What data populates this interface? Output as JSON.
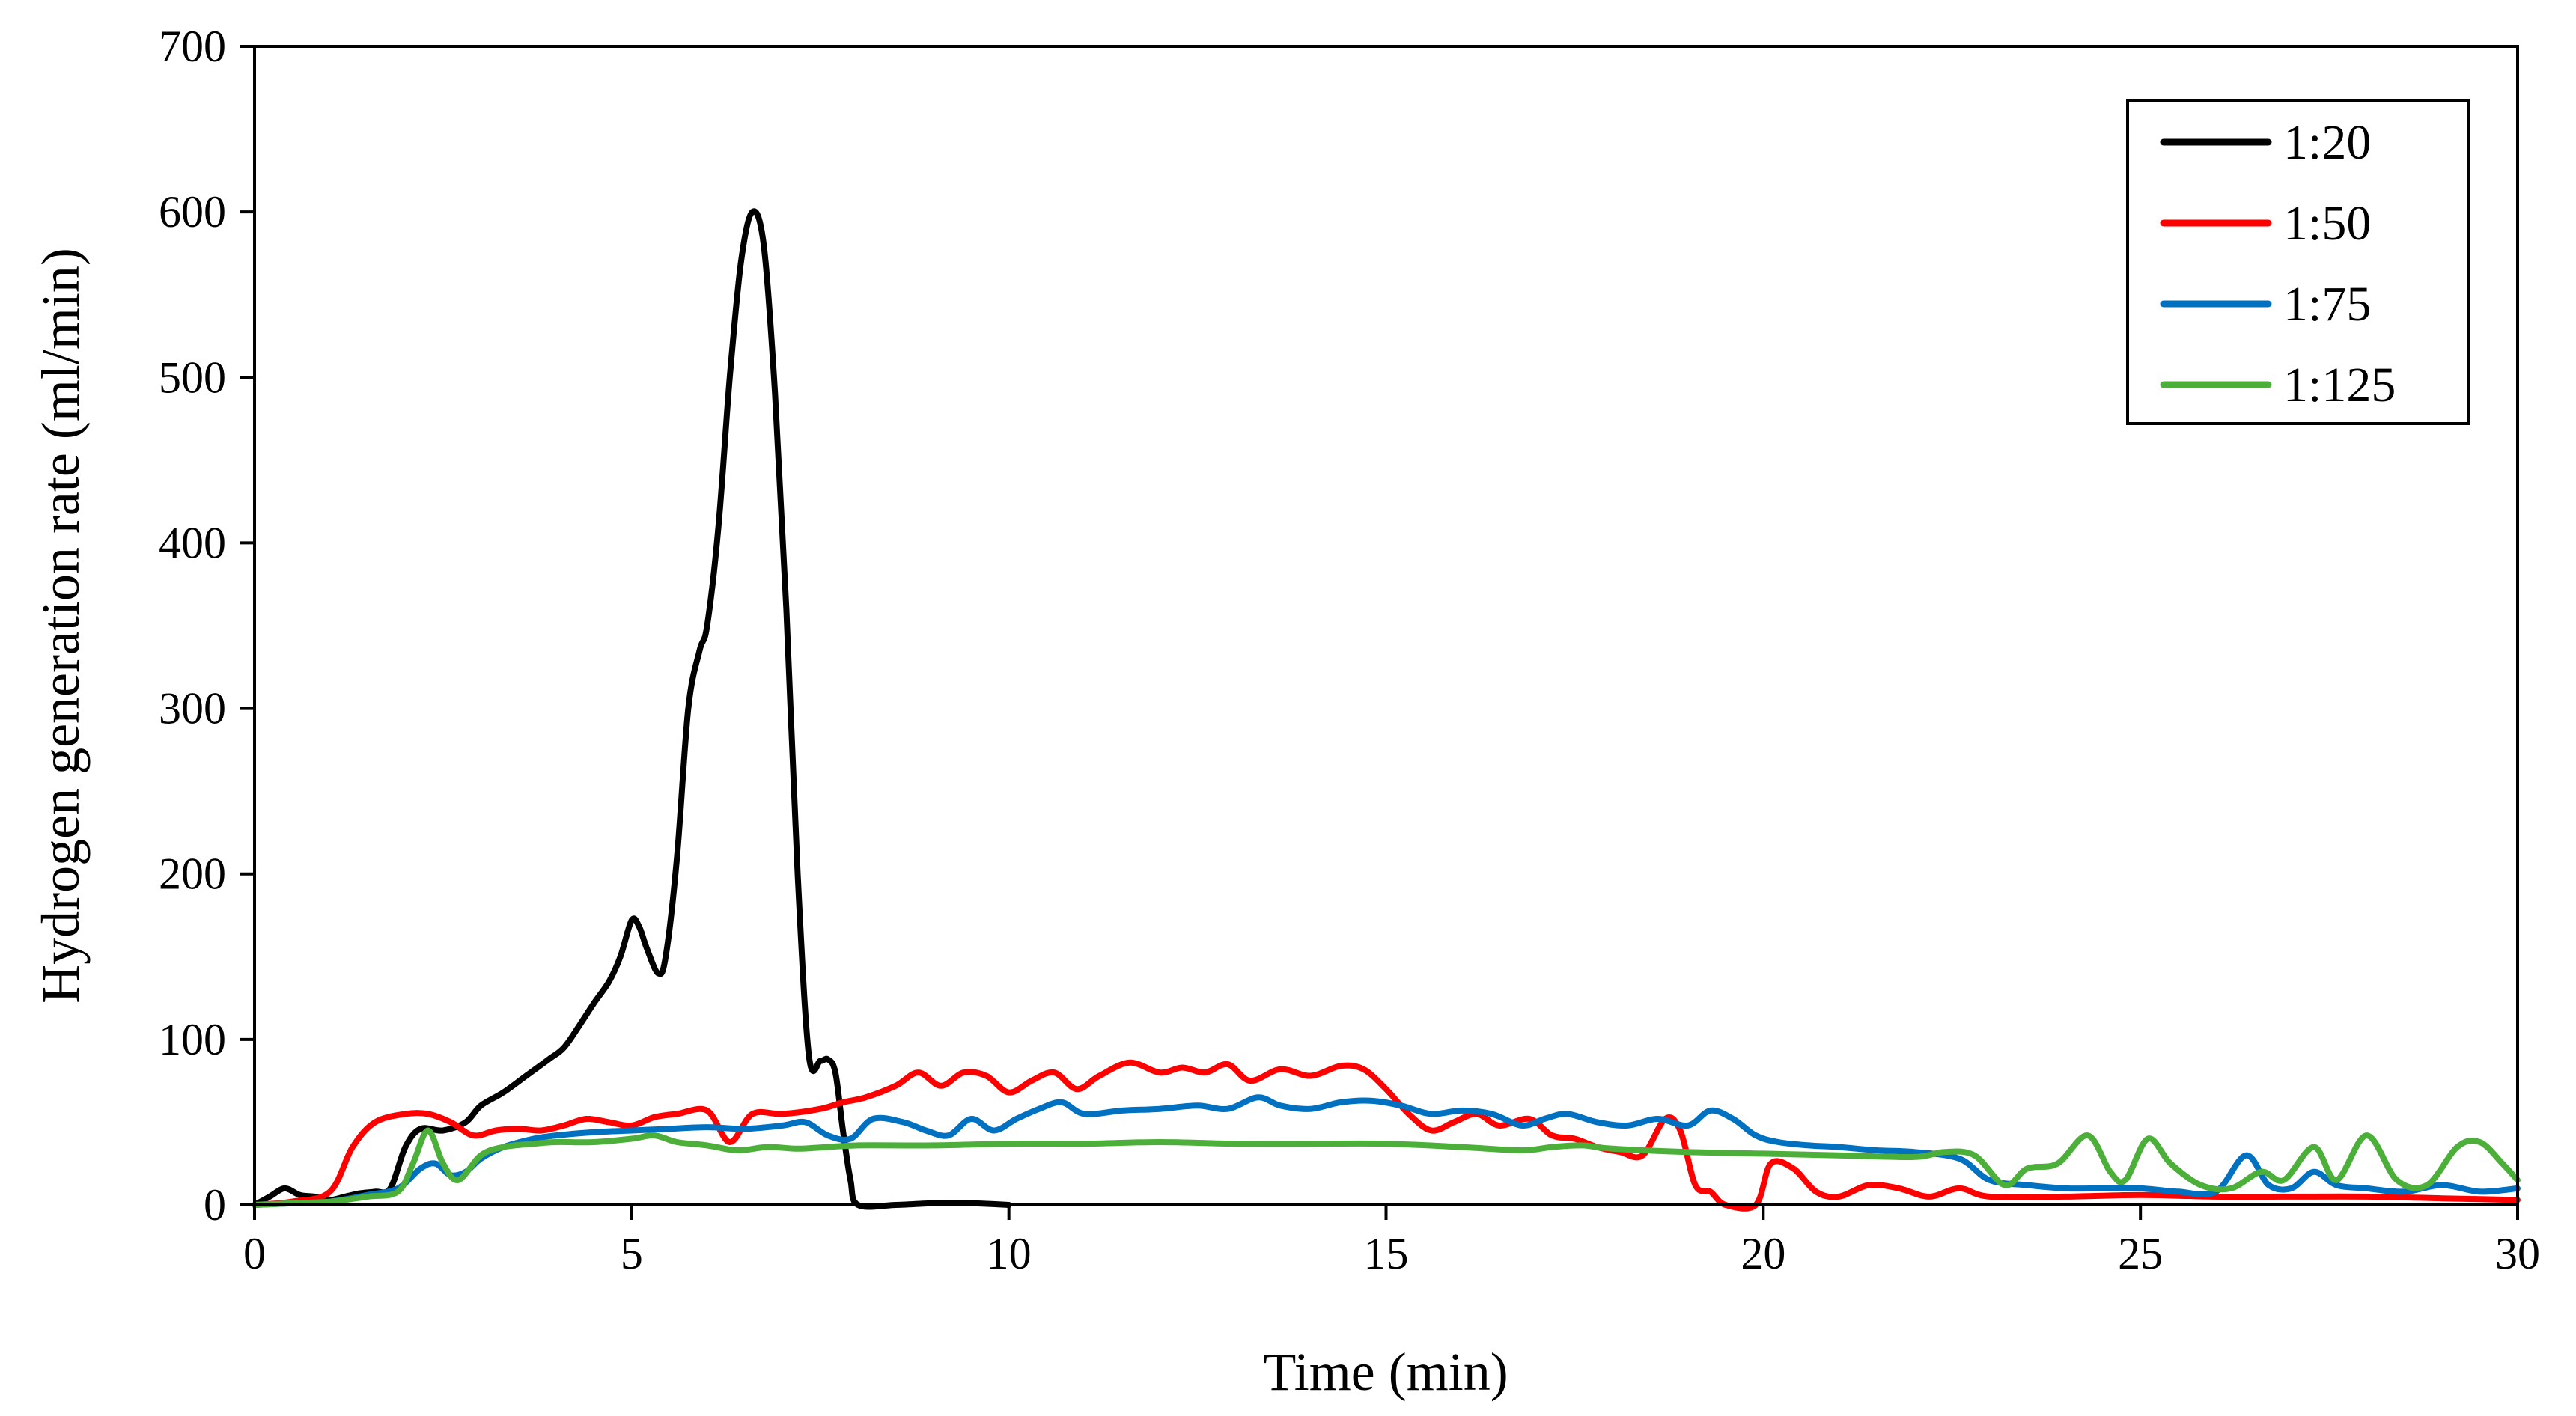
{
  "chart_data": {
    "type": "line",
    "title": "",
    "xlabel": "Time (min)",
    "ylabel": "Hydrogen generation rate (ml/min)",
    "xlim": [
      0,
      30
    ],
    "ylim": [
      0,
      700
    ],
    "xticks": [
      0,
      5,
      10,
      15,
      20,
      25,
      30
    ],
    "yticks": [
      0,
      100,
      200,
      300,
      400,
      500,
      600,
      700
    ],
    "grid": false,
    "legend_position": "top-right",
    "series": [
      {
        "name": "1:20",
        "color": "#000000",
        "points": [
          [
            0,
            0
          ],
          [
            0.2,
            5
          ],
          [
            0.4,
            10
          ],
          [
            0.6,
            6
          ],
          [
            0.8,
            5
          ],
          [
            1.0,
            3
          ],
          [
            1.2,
            5
          ],
          [
            1.4,
            7
          ],
          [
            1.6,
            8
          ],
          [
            1.8,
            10
          ],
          [
            2.0,
            35
          ],
          [
            2.2,
            46
          ],
          [
            2.5,
            45
          ],
          [
            2.8,
            50
          ],
          [
            3.0,
            60
          ],
          [
            3.3,
            68
          ],
          [
            3.6,
            78
          ],
          [
            3.9,
            88
          ],
          [
            4.1,
            95
          ],
          [
            4.3,
            108
          ],
          [
            4.5,
            122
          ],
          [
            4.7,
            135
          ],
          [
            4.85,
            150
          ],
          [
            5.0,
            172
          ],
          [
            5.1,
            168
          ],
          [
            5.2,
            155
          ],
          [
            5.35,
            140
          ],
          [
            5.45,
            150
          ],
          [
            5.6,
            210
          ],
          [
            5.75,
            300
          ],
          [
            5.9,
            335
          ],
          [
            6.0,
            350
          ],
          [
            6.15,
            410
          ],
          [
            6.3,
            500
          ],
          [
            6.45,
            570
          ],
          [
            6.6,
            600
          ],
          [
            6.75,
            580
          ],
          [
            6.9,
            490
          ],
          [
            7.05,
            360
          ],
          [
            7.2,
            200
          ],
          [
            7.35,
            90
          ],
          [
            7.5,
            87
          ],
          [
            7.6,
            88
          ],
          [
            7.7,
            80
          ],
          [
            7.8,
            45
          ],
          [
            7.9,
            15
          ],
          [
            8.0,
            0
          ],
          [
            8.5,
            0
          ],
          [
            9.0,
            1
          ],
          [
            9.5,
            1
          ],
          [
            10.0,
            0
          ]
        ]
      },
      {
        "name": "1:50",
        "color": "#ff0000",
        "points": [
          [
            0,
            0
          ],
          [
            0.5,
            2
          ],
          [
            1.0,
            8
          ],
          [
            1.3,
            35
          ],
          [
            1.6,
            50
          ],
          [
            2.0,
            55
          ],
          [
            2.3,
            55
          ],
          [
            2.6,
            50
          ],
          [
            2.9,
            42
          ],
          [
            3.2,
            45
          ],
          [
            3.5,
            46
          ],
          [
            3.8,
            45
          ],
          [
            4.1,
            48
          ],
          [
            4.4,
            52
          ],
          [
            4.7,
            50
          ],
          [
            5.0,
            48
          ],
          [
            5.3,
            53
          ],
          [
            5.6,
            55
          ],
          [
            6.0,
            57
          ],
          [
            6.3,
            38
          ],
          [
            6.6,
            55
          ],
          [
            7.0,
            55
          ],
          [
            7.5,
            58
          ],
          [
            7.8,
            62
          ],
          [
            8.1,
            65
          ],
          [
            8.5,
            72
          ],
          [
            8.8,
            80
          ],
          [
            9.1,
            72
          ],
          [
            9.4,
            80
          ],
          [
            9.7,
            78
          ],
          [
            10.0,
            68
          ],
          [
            10.3,
            75
          ],
          [
            10.6,
            80
          ],
          [
            10.9,
            70
          ],
          [
            11.2,
            78
          ],
          [
            11.6,
            86
          ],
          [
            12.0,
            80
          ],
          [
            12.3,
            83
          ],
          [
            12.6,
            80
          ],
          [
            12.9,
            85
          ],
          [
            13.2,
            75
          ],
          [
            13.6,
            82
          ],
          [
            14.0,
            78
          ],
          [
            14.4,
            84
          ],
          [
            14.7,
            82
          ],
          [
            15.0,
            70
          ],
          [
            15.3,
            55
          ],
          [
            15.6,
            45
          ],
          [
            15.9,
            50
          ],
          [
            16.2,
            55
          ],
          [
            16.5,
            48
          ],
          [
            16.9,
            52
          ],
          [
            17.2,
            42
          ],
          [
            17.5,
            40
          ],
          [
            17.8,
            35
          ],
          [
            18.1,
            32
          ],
          [
            18.4,
            30
          ],
          [
            18.7,
            52
          ],
          [
            18.9,
            45
          ],
          [
            19.1,
            12
          ],
          [
            19.3,
            8
          ],
          [
            19.5,
            0
          ],
          [
            19.9,
            0
          ],
          [
            20.1,
            25
          ],
          [
            20.4,
            22
          ],
          [
            20.7,
            8
          ],
          [
            21.0,
            5
          ],
          [
            21.4,
            12
          ],
          [
            21.8,
            10
          ],
          [
            22.2,
            5
          ],
          [
            22.6,
            10
          ],
          [
            23.0,
            5
          ],
          [
            24.0,
            5
          ],
          [
            25.0,
            6
          ],
          [
            26.0,
            5
          ],
          [
            27.0,
            5
          ],
          [
            28.0,
            5
          ],
          [
            29.0,
            4
          ],
          [
            30.0,
            3
          ]
        ]
      },
      {
        "name": "1:75",
        "color": "#0070c0",
        "points": [
          [
            0,
            0
          ],
          [
            0.5,
            1
          ],
          [
            1.0,
            2
          ],
          [
            1.5,
            6
          ],
          [
            1.9,
            10
          ],
          [
            2.2,
            22
          ],
          [
            2.4,
            25
          ],
          [
            2.6,
            18
          ],
          [
            2.8,
            20
          ],
          [
            3.0,
            28
          ],
          [
            3.3,
            35
          ],
          [
            3.7,
            40
          ],
          [
            4.0,
            42
          ],
          [
            4.5,
            44
          ],
          [
            5.0,
            45
          ],
          [
            5.5,
            46
          ],
          [
            6.0,
            47
          ],
          [
            6.5,
            46
          ],
          [
            7.0,
            48
          ],
          [
            7.3,
            50
          ],
          [
            7.6,
            42
          ],
          [
            7.9,
            40
          ],
          [
            8.2,
            52
          ],
          [
            8.6,
            50
          ],
          [
            8.9,
            45
          ],
          [
            9.2,
            42
          ],
          [
            9.5,
            52
          ],
          [
            9.8,
            45
          ],
          [
            10.1,
            52
          ],
          [
            10.4,
            58
          ],
          [
            10.7,
            62
          ],
          [
            11.0,
            55
          ],
          [
            11.5,
            57
          ],
          [
            12.0,
            58
          ],
          [
            12.5,
            60
          ],
          [
            12.9,
            58
          ],
          [
            13.3,
            65
          ],
          [
            13.6,
            60
          ],
          [
            14.0,
            58
          ],
          [
            14.4,
            62
          ],
          [
            14.8,
            63
          ],
          [
            15.2,
            60
          ],
          [
            15.6,
            55
          ],
          [
            16.0,
            57
          ],
          [
            16.4,
            55
          ],
          [
            16.8,
            48
          ],
          [
            17.1,
            52
          ],
          [
            17.4,
            55
          ],
          [
            17.8,
            50
          ],
          [
            18.2,
            48
          ],
          [
            18.6,
            52
          ],
          [
            19.0,
            48
          ],
          [
            19.3,
            57
          ],
          [
            19.6,
            52
          ],
          [
            19.9,
            42
          ],
          [
            20.2,
            38
          ],
          [
            20.6,
            36
          ],
          [
            21.0,
            35
          ],
          [
            21.5,
            33
          ],
          [
            22.0,
            32
          ],
          [
            22.6,
            28
          ],
          [
            23.0,
            15
          ],
          [
            23.5,
            12
          ],
          [
            24.0,
            10
          ],
          [
            24.5,
            10
          ],
          [
            25.0,
            10
          ],
          [
            25.5,
            8
          ],
          [
            26.0,
            8
          ],
          [
            26.4,
            30
          ],
          [
            26.7,
            12
          ],
          [
            27.0,
            10
          ],
          [
            27.3,
            20
          ],
          [
            27.6,
            12
          ],
          [
            28.0,
            10
          ],
          [
            28.5,
            8
          ],
          [
            29.0,
            12
          ],
          [
            29.5,
            8
          ],
          [
            30.0,
            10
          ]
        ]
      },
      {
        "name": "1:125",
        "color": "#4caf3a",
        "points": [
          [
            0,
            0
          ],
          [
            0.5,
            1
          ],
          [
            1.0,
            2
          ],
          [
            1.5,
            5
          ],
          [
            1.9,
            8
          ],
          [
            2.1,
            25
          ],
          [
            2.3,
            45
          ],
          [
            2.5,
            25
          ],
          [
            2.7,
            15
          ],
          [
            3.0,
            30
          ],
          [
            3.3,
            35
          ],
          [
            3.7,
            37
          ],
          [
            4.0,
            38
          ],
          [
            4.5,
            38
          ],
          [
            5.0,
            40
          ],
          [
            5.3,
            42
          ],
          [
            5.6,
            38
          ],
          [
            6.0,
            36
          ],
          [
            6.4,
            33
          ],
          [
            6.8,
            35
          ],
          [
            7.2,
            34
          ],
          [
            7.6,
            35
          ],
          [
            8.0,
            36
          ],
          [
            9.0,
            36
          ],
          [
            10.0,
            37
          ],
          [
            11.0,
            37
          ],
          [
            12.0,
            38
          ],
          [
            13.0,
            37
          ],
          [
            14.0,
            37
          ],
          [
            15.0,
            37
          ],
          [
            16.0,
            35
          ],
          [
            16.8,
            33
          ],
          [
            17.2,
            35
          ],
          [
            17.6,
            36
          ],
          [
            18.0,
            34
          ],
          [
            19.0,
            32
          ],
          [
            20.0,
            31
          ],
          [
            21.0,
            30
          ],
          [
            22.0,
            29
          ],
          [
            22.4,
            32
          ],
          [
            22.8,
            30
          ],
          [
            23.2,
            12
          ],
          [
            23.5,
            22
          ],
          [
            23.9,
            25
          ],
          [
            24.3,
            42
          ],
          [
            24.6,
            20
          ],
          [
            24.8,
            15
          ],
          [
            25.1,
            40
          ],
          [
            25.4,
            25
          ],
          [
            25.8,
            12
          ],
          [
            26.2,
            10
          ],
          [
            26.6,
            20
          ],
          [
            26.9,
            15
          ],
          [
            27.3,
            35
          ],
          [
            27.6,
            15
          ],
          [
            28.0,
            42
          ],
          [
            28.4,
            15
          ],
          [
            28.8,
            12
          ],
          [
            29.2,
            35
          ],
          [
            29.5,
            38
          ],
          [
            29.8,
            25
          ],
          [
            30.0,
            15
          ]
        ]
      }
    ]
  }
}
